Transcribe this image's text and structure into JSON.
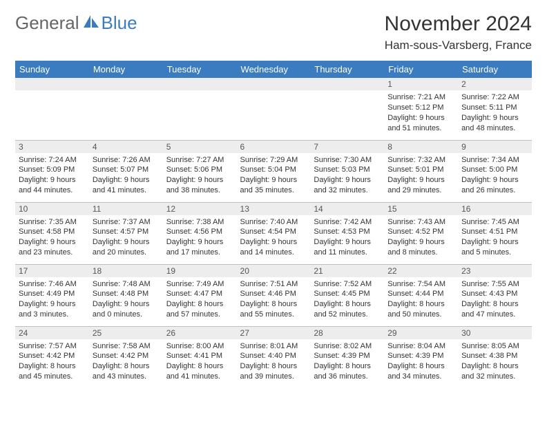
{
  "logo": {
    "general": "General",
    "blue": "Blue",
    "logo_color": "#3b7bbf"
  },
  "title": "November 2024",
  "location": "Ham-sous-Varsberg, France",
  "colors": {
    "header_bg": "#3b7bbf",
    "header_text": "#ffffff",
    "daynum_bg": "#ededed",
    "daynum_text": "#555555",
    "body_text": "#333333",
    "border": "#bfbfbf"
  },
  "weekdays": [
    "Sunday",
    "Monday",
    "Tuesday",
    "Wednesday",
    "Thursday",
    "Friday",
    "Saturday"
  ],
  "weeks": [
    [
      {
        "day": "",
        "lines": []
      },
      {
        "day": "",
        "lines": []
      },
      {
        "day": "",
        "lines": []
      },
      {
        "day": "",
        "lines": []
      },
      {
        "day": "",
        "lines": []
      },
      {
        "day": "1",
        "lines": [
          "Sunrise: 7:21 AM",
          "Sunset: 5:12 PM",
          "Daylight: 9 hours and 51 minutes."
        ]
      },
      {
        "day": "2",
        "lines": [
          "Sunrise: 7:22 AM",
          "Sunset: 5:11 PM",
          "Daylight: 9 hours and 48 minutes."
        ]
      }
    ],
    [
      {
        "day": "3",
        "lines": [
          "Sunrise: 7:24 AM",
          "Sunset: 5:09 PM",
          "Daylight: 9 hours and 44 minutes."
        ]
      },
      {
        "day": "4",
        "lines": [
          "Sunrise: 7:26 AM",
          "Sunset: 5:07 PM",
          "Daylight: 9 hours and 41 minutes."
        ]
      },
      {
        "day": "5",
        "lines": [
          "Sunrise: 7:27 AM",
          "Sunset: 5:06 PM",
          "Daylight: 9 hours and 38 minutes."
        ]
      },
      {
        "day": "6",
        "lines": [
          "Sunrise: 7:29 AM",
          "Sunset: 5:04 PM",
          "Daylight: 9 hours and 35 minutes."
        ]
      },
      {
        "day": "7",
        "lines": [
          "Sunrise: 7:30 AM",
          "Sunset: 5:03 PM",
          "Daylight: 9 hours and 32 minutes."
        ]
      },
      {
        "day": "8",
        "lines": [
          "Sunrise: 7:32 AM",
          "Sunset: 5:01 PM",
          "Daylight: 9 hours and 29 minutes."
        ]
      },
      {
        "day": "9",
        "lines": [
          "Sunrise: 7:34 AM",
          "Sunset: 5:00 PM",
          "Daylight: 9 hours and 26 minutes."
        ]
      }
    ],
    [
      {
        "day": "10",
        "lines": [
          "Sunrise: 7:35 AM",
          "Sunset: 4:58 PM",
          "Daylight: 9 hours and 23 minutes."
        ]
      },
      {
        "day": "11",
        "lines": [
          "Sunrise: 7:37 AM",
          "Sunset: 4:57 PM",
          "Daylight: 9 hours and 20 minutes."
        ]
      },
      {
        "day": "12",
        "lines": [
          "Sunrise: 7:38 AM",
          "Sunset: 4:56 PM",
          "Daylight: 9 hours and 17 minutes."
        ]
      },
      {
        "day": "13",
        "lines": [
          "Sunrise: 7:40 AM",
          "Sunset: 4:54 PM",
          "Daylight: 9 hours and 14 minutes."
        ]
      },
      {
        "day": "14",
        "lines": [
          "Sunrise: 7:42 AM",
          "Sunset: 4:53 PM",
          "Daylight: 9 hours and 11 minutes."
        ]
      },
      {
        "day": "15",
        "lines": [
          "Sunrise: 7:43 AM",
          "Sunset: 4:52 PM",
          "Daylight: 9 hours and 8 minutes."
        ]
      },
      {
        "day": "16",
        "lines": [
          "Sunrise: 7:45 AM",
          "Sunset: 4:51 PM",
          "Daylight: 9 hours and 5 minutes."
        ]
      }
    ],
    [
      {
        "day": "17",
        "lines": [
          "Sunrise: 7:46 AM",
          "Sunset: 4:49 PM",
          "Daylight: 9 hours and 3 minutes."
        ]
      },
      {
        "day": "18",
        "lines": [
          "Sunrise: 7:48 AM",
          "Sunset: 4:48 PM",
          "Daylight: 9 hours and 0 minutes."
        ]
      },
      {
        "day": "19",
        "lines": [
          "Sunrise: 7:49 AM",
          "Sunset: 4:47 PM",
          "Daylight: 8 hours and 57 minutes."
        ]
      },
      {
        "day": "20",
        "lines": [
          "Sunrise: 7:51 AM",
          "Sunset: 4:46 PM",
          "Daylight: 8 hours and 55 minutes."
        ]
      },
      {
        "day": "21",
        "lines": [
          "Sunrise: 7:52 AM",
          "Sunset: 4:45 PM",
          "Daylight: 8 hours and 52 minutes."
        ]
      },
      {
        "day": "22",
        "lines": [
          "Sunrise: 7:54 AM",
          "Sunset: 4:44 PM",
          "Daylight: 8 hours and 50 minutes."
        ]
      },
      {
        "day": "23",
        "lines": [
          "Sunrise: 7:55 AM",
          "Sunset: 4:43 PM",
          "Daylight: 8 hours and 47 minutes."
        ]
      }
    ],
    [
      {
        "day": "24",
        "lines": [
          "Sunrise: 7:57 AM",
          "Sunset: 4:42 PM",
          "Daylight: 8 hours and 45 minutes."
        ]
      },
      {
        "day": "25",
        "lines": [
          "Sunrise: 7:58 AM",
          "Sunset: 4:42 PM",
          "Daylight: 8 hours and 43 minutes."
        ]
      },
      {
        "day": "26",
        "lines": [
          "Sunrise: 8:00 AM",
          "Sunset: 4:41 PM",
          "Daylight: 8 hours and 41 minutes."
        ]
      },
      {
        "day": "27",
        "lines": [
          "Sunrise: 8:01 AM",
          "Sunset: 4:40 PM",
          "Daylight: 8 hours and 39 minutes."
        ]
      },
      {
        "day": "28",
        "lines": [
          "Sunrise: 8:02 AM",
          "Sunset: 4:39 PM",
          "Daylight: 8 hours and 36 minutes."
        ]
      },
      {
        "day": "29",
        "lines": [
          "Sunrise: 8:04 AM",
          "Sunset: 4:39 PM",
          "Daylight: 8 hours and 34 minutes."
        ]
      },
      {
        "day": "30",
        "lines": [
          "Sunrise: 8:05 AM",
          "Sunset: 4:38 PM",
          "Daylight: 8 hours and 32 minutes."
        ]
      }
    ]
  ]
}
